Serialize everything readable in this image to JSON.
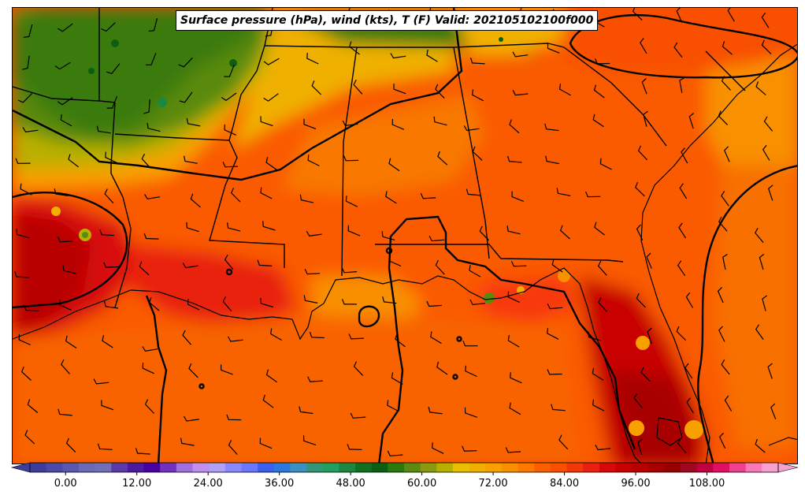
{
  "title": "Surface pressure (hPa), wind (kts), T (F) Valid: 202105102100f000",
  "colorbar": {
    "min": -6,
    "max": 120,
    "step": 3,
    "extend": "both",
    "ticks": [
      "0.00",
      "12.00",
      "24.00",
      "36.00",
      "48.00",
      "60.00",
      "72.00",
      "84.00",
      "96.00",
      "108.00"
    ],
    "colors": [
      "#3d3d9e",
      "#4a4aa8",
      "#5858b0",
      "#6a6ab8",
      "#7070b8",
      "#5a3aa8",
      "#4a1aa0",
      "#4800a0",
      "#7030c0",
      "#a070e0",
      "#c090f0",
      "#b0a0f8",
      "#8888ff",
      "#6a78ff",
      "#3a60f0",
      "#2a78e0",
      "#3a90c0",
      "#309878",
      "#20a060",
      "#1a8840",
      "#107020",
      "#0a6010",
      "#2a7a10",
      "#5a8a10",
      "#8a9a10",
      "#b8b000",
      "#e8c000",
      "#f0b000",
      "#f8a000",
      "#f89000",
      "#ff7800",
      "#fa6000",
      "#f85000",
      "#f03808",
      "#e82010",
      "#d80808",
      "#c80000",
      "#b80000",
      "#a80000",
      "#980000",
      "#a00820",
      "#c00040",
      "#e01060",
      "#f04090",
      "#f878b8",
      "#f8a0d0"
    ]
  },
  "layers": {
    "field": "T (F)",
    "contours": "Surface pressure (hPa)",
    "barbs": "wind (kts)"
  }
}
